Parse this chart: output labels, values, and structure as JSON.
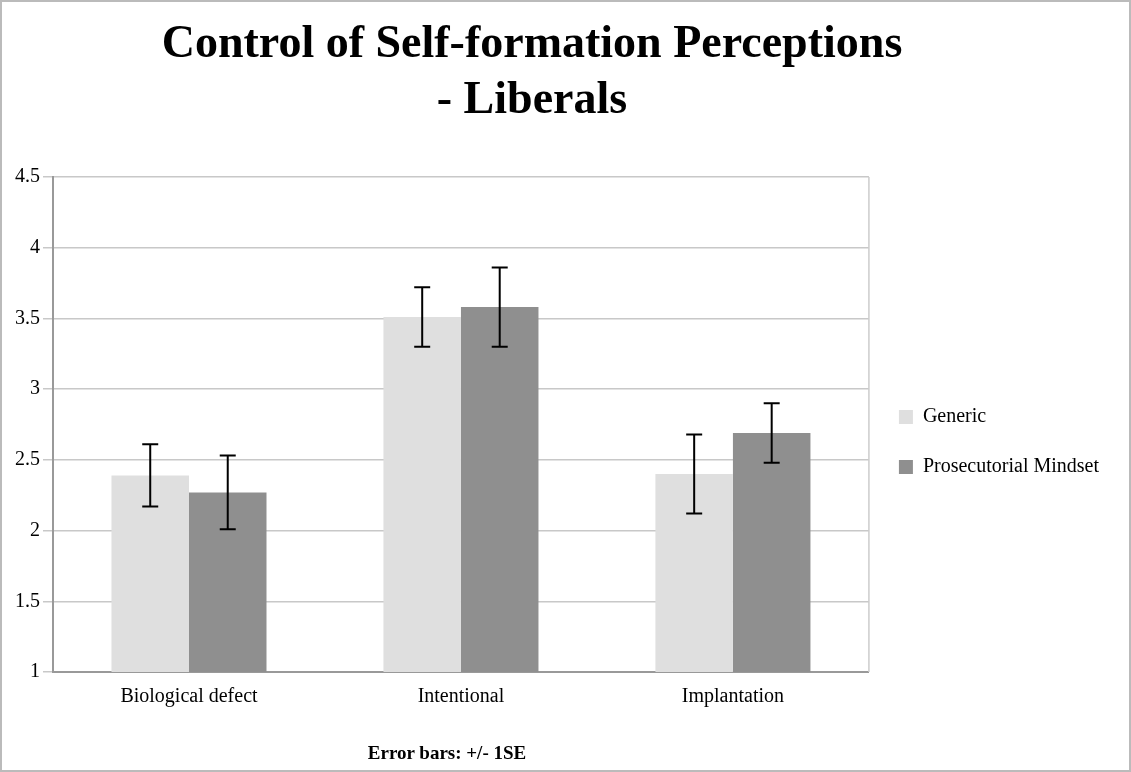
{
  "chart_data": {
    "type": "bar",
    "title": "Control of Self-formation Perceptions - Liberals",
    "categories": [
      "Biological defect",
      "Intentional",
      "Implantation"
    ],
    "series": [
      {
        "name": "Generic",
        "color": "#dfdfdf",
        "values": [
          2.39,
          3.51,
          2.4
        ],
        "errors": [
          0.22,
          0.21,
          0.28
        ]
      },
      {
        "name": "Prosecutorial Mindset",
        "color": "#8f8f8f",
        "values": [
          2.27,
          3.58,
          2.69
        ],
        "errors": [
          0.26,
          0.28,
          0.21
        ]
      }
    ],
    "ylim": [
      1,
      4.5
    ],
    "yticks": [
      1,
      1.5,
      2,
      2.5,
      3,
      3.5,
      4,
      4.5
    ],
    "grid": "y",
    "legend": "right",
    "annotations": [
      "Error bars: +/- 1SE"
    ]
  }
}
